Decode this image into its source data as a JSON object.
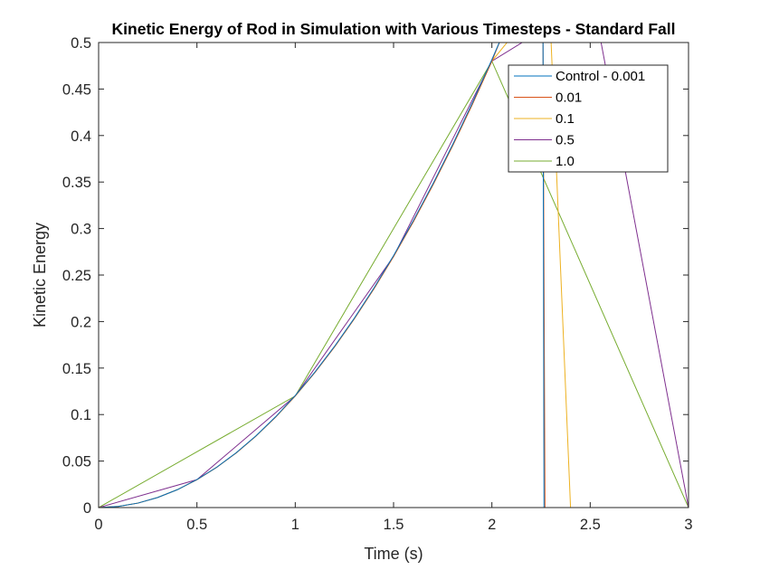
{
  "chart_data": {
    "type": "line",
    "title": "Kinetic Energy of Rod in Simulation with Various Timesteps - Standard Fall",
    "xlabel": "Time (s)",
    "ylabel": "Kinetic Energy",
    "xlim": [
      0,
      3
    ],
    "ylim": [
      0,
      0.5
    ],
    "xticks": [
      0,
      0.5,
      1,
      1.5,
      2,
      2.5,
      3
    ],
    "xtick_labels": [
      "0",
      "0.5",
      "1",
      "1.5",
      "2",
      "2.5",
      "3"
    ],
    "yticks": [
      0,
      0.05,
      0.1,
      0.15,
      0.2,
      0.25,
      0.3,
      0.35,
      0.4,
      0.45,
      0.5
    ],
    "ytick_labels": [
      "0",
      "0.05",
      "0.1",
      "0.15",
      "0.2",
      "0.25",
      "0.3",
      "0.35",
      "0.4",
      "0.45",
      "0.5"
    ],
    "grid": false,
    "legend_position": "top-right",
    "series": [
      {
        "name": "Control - 0.001",
        "color": "#0072BD",
        "points": [
          [
            0,
            0
          ],
          [
            0.1,
            0.0012
          ],
          [
            0.2,
            0.0048
          ],
          [
            0.3,
            0.0108
          ],
          [
            0.4,
            0.0192
          ],
          [
            0.5,
            0.0301
          ],
          [
            0.6,
            0.0433
          ],
          [
            0.7,
            0.059
          ],
          [
            0.8,
            0.0771
          ],
          [
            0.9,
            0.0976
          ],
          [
            1.0,
            0.1204
          ],
          [
            1.1,
            0.1457
          ],
          [
            1.2,
            0.1734
          ],
          [
            1.3,
            0.2035
          ],
          [
            1.4,
            0.236
          ],
          [
            1.5,
            0.2709
          ],
          [
            1.6,
            0.3083
          ],
          [
            1.7,
            0.348
          ],
          [
            1.8,
            0.3901
          ],
          [
            1.9,
            0.4347
          ],
          [
            2.0,
            0.4817
          ],
          [
            2.05,
            0.506
          ],
          [
            2.26,
            0.506
          ],
          [
            2.265,
            0
          ],
          [
            2.4,
            0
          ],
          [
            2.5,
            0
          ],
          [
            3,
            0
          ]
        ]
      },
      {
        "name": "0.01",
        "color": "#D95319",
        "points": [
          [
            0,
            0
          ],
          [
            0.1,
            0.0012
          ],
          [
            0.2,
            0.0048
          ],
          [
            0.3,
            0.0108
          ],
          [
            0.4,
            0.0192
          ],
          [
            0.5,
            0.03
          ],
          [
            0.6,
            0.0432
          ],
          [
            0.7,
            0.0588
          ],
          [
            0.8,
            0.0768
          ],
          [
            0.9,
            0.0972
          ],
          [
            1.0,
            0.12
          ],
          [
            1.1,
            0.1452
          ],
          [
            1.2,
            0.1728
          ],
          [
            1.3,
            0.2028
          ],
          [
            1.4,
            0.2352
          ],
          [
            1.5,
            0.27
          ],
          [
            1.6,
            0.3072
          ],
          [
            1.7,
            0.3468
          ],
          [
            1.8,
            0.3888
          ],
          [
            1.9,
            0.4332
          ],
          [
            2.0,
            0.48
          ],
          [
            2.05,
            0.506
          ],
          [
            2.26,
            0.506
          ],
          [
            2.27,
            0
          ],
          [
            2.4,
            0
          ],
          [
            2.5,
            0
          ],
          [
            3,
            0
          ]
        ]
      },
      {
        "name": "0.1",
        "color": "#EDB120",
        "points": [
          [
            0,
            0
          ],
          [
            0.1,
            0.0012
          ],
          [
            0.2,
            0.0048
          ],
          [
            0.3,
            0.0108
          ],
          [
            0.4,
            0.0192
          ],
          [
            0.5,
            0.03
          ],
          [
            0.6,
            0.0432
          ],
          [
            0.7,
            0.0588
          ],
          [
            0.8,
            0.0768
          ],
          [
            0.9,
            0.0972
          ],
          [
            1.0,
            0.12
          ],
          [
            1.1,
            0.1452
          ],
          [
            1.2,
            0.1728
          ],
          [
            1.3,
            0.2028
          ],
          [
            1.4,
            0.2352
          ],
          [
            1.5,
            0.27
          ],
          [
            1.6,
            0.3072
          ],
          [
            1.7,
            0.3468
          ],
          [
            1.8,
            0.3888
          ],
          [
            1.9,
            0.4332
          ],
          [
            2.0,
            0.48
          ],
          [
            2.1,
            0.506
          ],
          [
            2.3,
            0.506
          ],
          [
            2.4,
            0
          ],
          [
            2.5,
            0
          ],
          [
            3,
            0
          ]
        ]
      },
      {
        "name": "0.5",
        "color": "#7E2F8E",
        "points": [
          [
            0,
            0
          ],
          [
            0.5,
            0.03
          ],
          [
            1.0,
            0.12
          ],
          [
            1.5,
            0.27
          ],
          [
            2.0,
            0.48
          ],
          [
            2.2,
            0.506
          ],
          [
            2.55,
            0.506
          ],
          [
            3.0,
            0
          ]
        ]
      },
      {
        "name": "1.0",
        "color": "#77AC30",
        "points": [
          [
            0,
            0
          ],
          [
            1.0,
            0.12
          ],
          [
            2.0,
            0.48
          ],
          [
            3.0,
            0
          ]
        ]
      }
    ]
  }
}
